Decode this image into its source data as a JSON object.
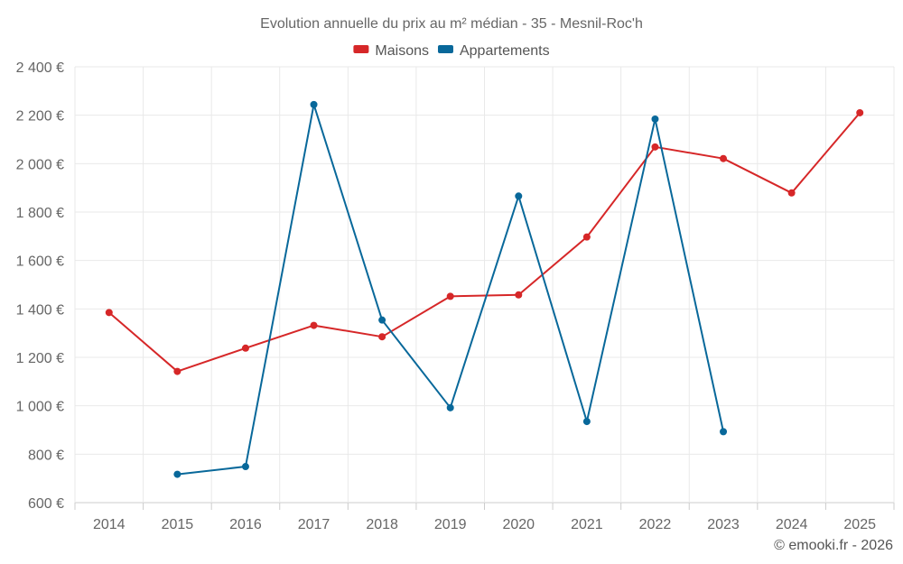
{
  "chart_data": {
    "type": "line",
    "title": "Evolution annuelle du prix au m² médian - 35 - Mesnil-Roc'h",
    "categories": [
      "2014",
      "2015",
      "2016",
      "2017",
      "2018",
      "2019",
      "2020",
      "2021",
      "2022",
      "2023",
      "2024",
      "2025"
    ],
    "series": [
      {
        "name": "Maisons",
        "color": "#d62728",
        "values": [
          1385,
          1142,
          1238,
          1332,
          1285,
          1452,
          1458,
          1697,
          2069,
          2021,
          1879,
          2210
        ]
      },
      {
        "name": "Appartements",
        "color": "#08689a",
        "values": [
          null,
          717,
          749,
          2244,
          1354,
          992,
          1866,
          935,
          2184,
          893,
          null,
          null
        ]
      }
    ],
    "ylim": [
      600,
      2400
    ],
    "yticks": [
      600,
      800,
      1000,
      1200,
      1400,
      1600,
      1800,
      2000,
      2200,
      2400
    ],
    "ytick_labels": [
      "600 €",
      "800 €",
      "1 000 €",
      "1 200 €",
      "1 400 €",
      "1 600 €",
      "1 800 €",
      "2 000 €",
      "2 200 €",
      "2 400 €"
    ],
    "xlabel": "",
    "ylabel": "",
    "legend_position": "top",
    "grid": true,
    "credit": "© emooki.fr - 2026"
  }
}
